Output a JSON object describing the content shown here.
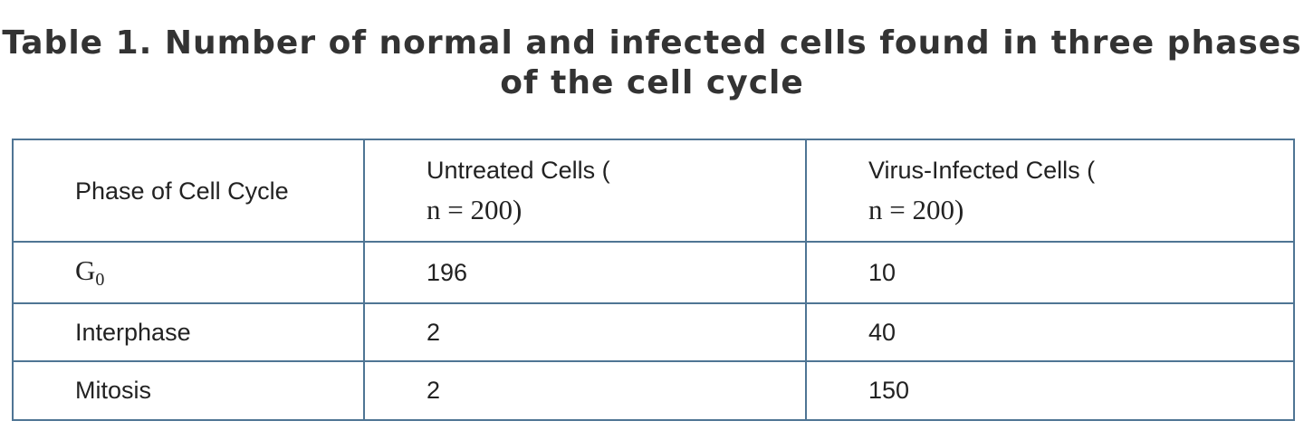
{
  "title": "Table 1. Number of normal and infected cells found in three phases of the cell cycle",
  "table": {
    "headers": [
      {
        "text": "Phase of Cell Cycle"
      },
      {
        "text": "Untreated Cells (",
        "math": "n = 200)"
      },
      {
        "text": "Virus-Infected Cells (",
        "math": "n = 200)"
      }
    ],
    "rows": [
      {
        "phase": "G",
        "phase_sub": "0",
        "untreated": "196",
        "infected": "10"
      },
      {
        "phase": "Interphase",
        "untreated": "2",
        "infected": "40"
      },
      {
        "phase": "Mitosis",
        "untreated": "2",
        "infected": "150"
      }
    ]
  }
}
